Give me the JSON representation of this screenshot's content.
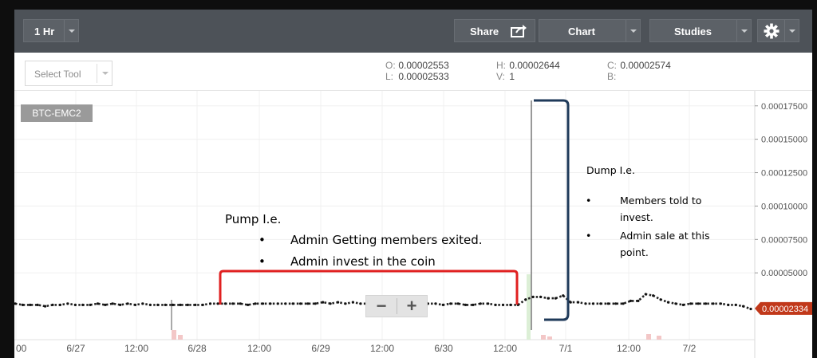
{
  "toolbar": {
    "interval_label": "1 Hr",
    "share_label": "Share",
    "chart_label": "Chart",
    "studies_label": "Studies",
    "share_icon": "share-icon",
    "settings_icon": "gear-icon"
  },
  "tool_select": {
    "placeholder": "Select Tool"
  },
  "ohlc": {
    "open_key": "O:",
    "open": "0.00002553",
    "low_key": "L:",
    "low": "0.00002533",
    "high_key": "H:",
    "high": "0.00002644",
    "volume_key": "V:",
    "volume": "1",
    "close_key": "C:",
    "close": "0.00002574",
    "b_key": "B:",
    "b": ""
  },
  "symbol": "BTC-EMC2",
  "zoom": {
    "out_label": "−",
    "in_label": "+"
  },
  "current_price": "0.00002334",
  "colors": {
    "accent": "#c1381a",
    "pump_bracket": "#e02020",
    "dump_bracket": "#1f3a5a",
    "toolbar_bg": "#4d5258"
  },
  "chart_data": {
    "type": "line",
    "symbol": "BTC-EMC2",
    "x_tick_labels": [
      "00",
      "6/27",
      "12:00",
      "6/28",
      "12:00",
      "6/29",
      "12:00",
      "6/30",
      "12:00",
      "7/1",
      "12:00",
      "7/2"
    ],
    "y_tick_labels": [
      "0.00017500",
      "0.00015000",
      "0.00012500",
      "0.00010000",
      "0.00007500",
      "0.00005000"
    ],
    "ylim": [
      0,
      0.000185
    ],
    "grid": true,
    "current_price": 2.334e-05,
    "series": [
      {
        "t": [
          0,
          2,
          4,
          6,
          8,
          10,
          12,
          14,
          16,
          18,
          20,
          22,
          24,
          26,
          28,
          30,
          32,
          34,
          36,
          38,
          40,
          42,
          44,
          46,
          48,
          50,
          52,
          54,
          56,
          58,
          60,
          62,
          64,
          66,
          68,
          70,
          72,
          74,
          76,
          78,
          80,
          82,
          84,
          86,
          88,
          90,
          92,
          94,
          96,
          98,
          100,
          102,
          104,
          106,
          108,
          110,
          112,
          114,
          116,
          118,
          120,
          122,
          124,
          126,
          128,
          130,
          132,
          134,
          136,
          138,
          140,
          142,
          144,
          146,
          148,
          150,
          152,
          154,
          156,
          158,
          160,
          162,
          164,
          166,
          168,
          170,
          172,
          174,
          176,
          178,
          180,
          182,
          184,
          186,
          188,
          190,
          192,
          194,
          196
        ],
        "values": [
          2.7e-05,
          2.6e-05,
          2.6e-05,
          2.6e-05,
          2.5e-05,
          2.6e-05,
          2.6e-05,
          2.7e-05,
          2.6e-05,
          2.6e-05,
          2.6e-05,
          2.7e-05,
          2.6e-05,
          2.7e-05,
          2.6e-05,
          2.7e-05,
          2.6e-05,
          2.7e-05,
          2.6e-05,
          2.6e-05,
          2.6e-05,
          2.6e-05,
          2.6e-05,
          2.6e-05,
          2.6e-05,
          2.6e-05,
          2.7e-05,
          2.7e-05,
          2.7e-05,
          2.7e-05,
          2.7e-05,
          2.6e-05,
          2.7e-05,
          2.7e-05,
          2.7e-05,
          2.7e-05,
          2.7e-05,
          2.7e-05,
          2.7e-05,
          2.7e-05,
          2.7e-05,
          2.8e-05,
          2.7e-05,
          2.8e-05,
          2.7e-05,
          2.8e-05,
          2.7e-05,
          2.7e-05,
          2.7e-05,
          2.7e-05,
          2.7e-05,
          2.8e-05,
          2.6e-05,
          2.7e-05,
          2.7e-05,
          2.7e-05,
          2.7e-05,
          2.6e-05,
          2.7e-05,
          2.7e-05,
          2.6e-05,
          2.6e-05,
          2.7e-05,
          2.7e-05,
          2.6e-05,
          2.6e-05,
          2.6e-05,
          2.6e-05,
          3e-05,
          3.2e-05,
          3.2e-05,
          3.1e-05,
          3.1e-05,
          3.3e-05,
          2.8e-05,
          2.8e-05,
          2.7e-05,
          2.7e-05,
          2.7e-05,
          2.7e-05,
          2.7e-05,
          2.7e-05,
          2.9e-05,
          2.9e-05,
          3.4e-05,
          3.3e-05,
          3e-05,
          2.8e-05,
          2.7e-05,
          2.6e-05,
          2.7e-05,
          2.7e-05,
          2.7e-05,
          2.7e-05,
          2.7e-05,
          2.6e-05,
          2.6e-05,
          2.5e-05,
          2.3e-05
        ]
      }
    ]
  },
  "annotations": {
    "pump_title": "Pump I.e.",
    "pump_items": [
      "Admin Getting members exited.",
      "Admin invest in the coin"
    ],
    "dump_title": "Dump I.e.",
    "dump_item1_line1": "Members told to",
    "dump_item1_line2": "invest.",
    "dump_item2_line1": "Admin sale at this",
    "dump_item2_line2": "point.",
    "bullet": "•"
  }
}
